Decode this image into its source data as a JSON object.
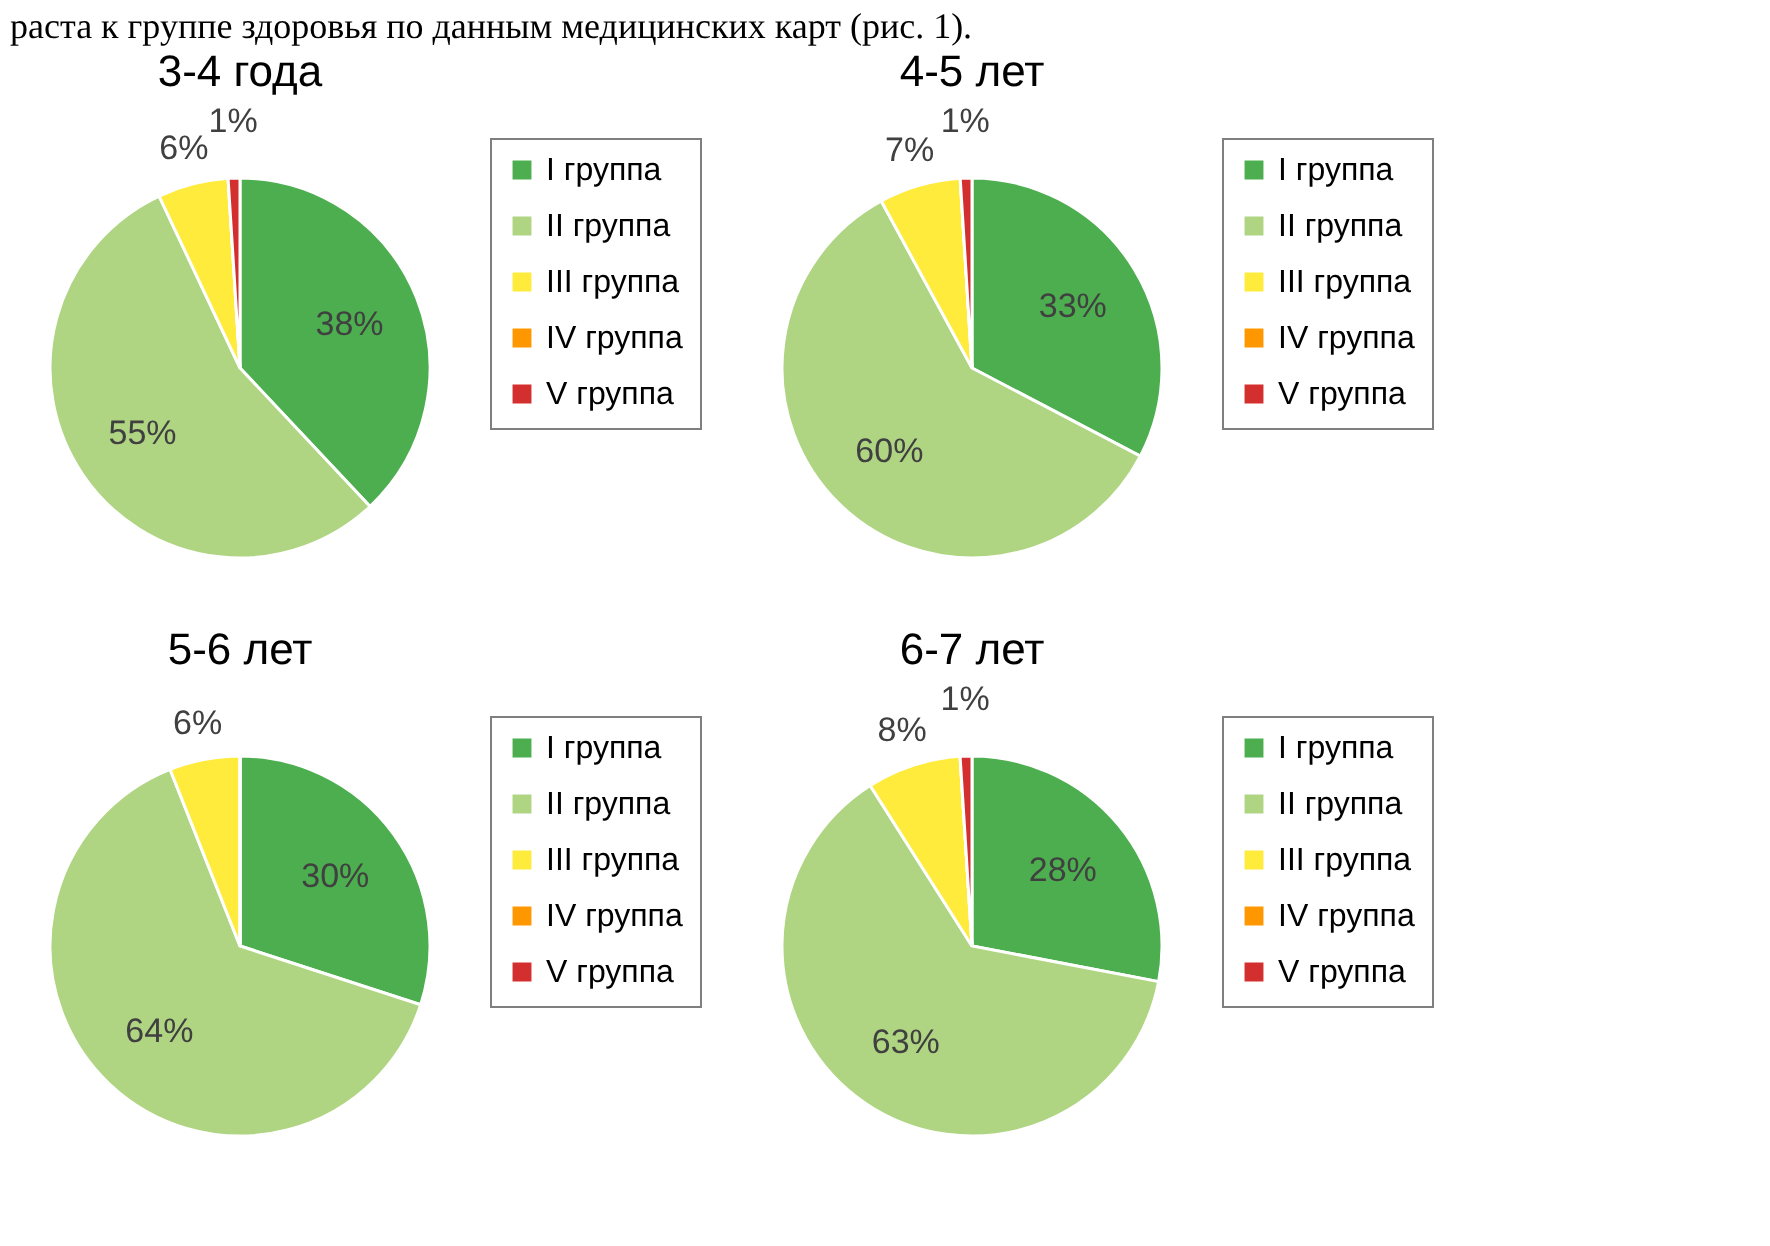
{
  "chart_data": [
    {
      "type": "pie",
      "title": "3-4 года",
      "annotations": [
        "раста к группе здоровья по данным медицинских карт (рис. 1)."
      ],
      "categories": [
        "I группа",
        "II группа",
        "III группа",
        "IV группа",
        "V группа"
      ],
      "values": [
        38,
        55,
        6,
        0,
        1
      ],
      "value_labels": [
        "38%",
        "55%",
        "6%",
        null,
        "1%"
      ],
      "colors": [
        "#4cae4f",
        "#afd582",
        "#ffeb3b",
        "#ff9800",
        "#d32f2f"
      ],
      "legend": "right"
    },
    {
      "type": "pie",
      "title": "4-5 лет",
      "categories": [
        "I группа",
        "II группа",
        "III группа",
        "IV группа",
        "V группа"
      ],
      "values": [
        33,
        60,
        7,
        0,
        1
      ],
      "value_labels": [
        "33%",
        "60%",
        "7%",
        null,
        "1%"
      ],
      "colors": [
        "#4cae4f",
        "#afd582",
        "#ffeb3b",
        "#ff9800",
        "#d32f2f"
      ],
      "legend": "right"
    },
    {
      "type": "pie",
      "title": "5-6 лет",
      "categories": [
        "I группа",
        "II группа",
        "III группа",
        "IV группа",
        "V группа"
      ],
      "values": [
        30,
        64,
        6,
        0,
        0
      ],
      "value_labels": [
        "30%",
        "64%",
        "6%",
        null,
        null
      ],
      "colors": [
        "#4cae4f",
        "#afd582",
        "#ffeb3b",
        "#ff9800",
        "#d32f2f"
      ],
      "legend": "right"
    },
    {
      "type": "pie",
      "title": "6-7 лет",
      "categories": [
        "I группа",
        "II группа",
        "III группа",
        "IV группа",
        "V группа"
      ],
      "values": [
        28,
        63,
        8,
        0,
        1
      ],
      "value_labels": [
        "28%",
        "63%",
        "8%",
        null,
        "1%"
      ],
      "colors": [
        "#4cae4f",
        "#afd582",
        "#ffeb3b",
        "#ff9800",
        "#d32f2f"
      ],
      "legend": "right"
    }
  ]
}
